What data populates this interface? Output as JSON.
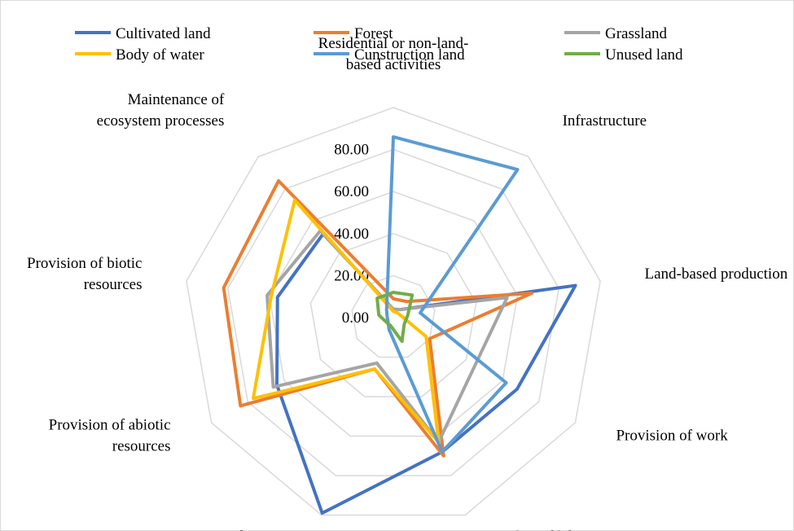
{
  "chart_data": {
    "type": "radar",
    "title": "",
    "axes": [
      "Residential or non-land-based activities",
      "Infrastructure",
      "Land-based production",
      "Provision of work",
      "Quality of life",
      "Food security",
      "Provision of abiotic resources",
      "Provision of biotic resources",
      "Maintenance of ecosystem processes"
    ],
    "axis_label_lines": [
      [
        "Residential or non-land-",
        "based activities"
      ],
      [
        "Infrastructure"
      ],
      [
        "Land-based production"
      ],
      [
        "Provision of work"
      ],
      [
        "Quality of life"
      ],
      [
        "Food security"
      ],
      [
        "Provision of abiotic",
        "resources"
      ],
      [
        "Provision of biotic",
        "resources"
      ],
      [
        "Maintenance of",
        "ecosystem processes"
      ]
    ],
    "rlim": [
      0,
      100
    ],
    "ticks": [
      "0.00",
      "20.00",
      "40.00",
      "60.00",
      "80.00"
    ],
    "tick_values": [
      0,
      20,
      40,
      60,
      80
    ],
    "grid": true,
    "legend_position": "top",
    "series": [
      {
        "name": "Cultivated land",
        "color": "#4472c4",
        "values": [
          4,
          5,
          88,
          68,
          68,
          99,
          64,
          56,
          52
        ]
      },
      {
        "name": "Forest",
        "color": "#ed7d31",
        "values": [
          9,
          10,
          67,
          20,
          70,
          26,
          84,
          82,
          85
        ]
      },
      {
        "name": "Grassland",
        "color": "#a5a5a5",
        "values": [
          4,
          5,
          55,
          45,
          63,
          23,
          66,
          61,
          54
        ]
      },
      {
        "name": "Body of water",
        "color": "#ffc000",
        "values": [
          3,
          3,
          4,
          18,
          63,
          26,
          77,
          59,
          73
        ]
      },
      {
        "name": "Cunstruction land",
        "color": "#5b9bd5",
        "values": [
          86,
          92,
          13,
          62,
          68,
          6,
          3,
          3,
          5
        ]
      },
      {
        "name": "Unused land",
        "color": "#70ad47",
        "values": [
          12,
          14,
          7,
          6,
          12,
          4,
          4,
          7,
          12
        ]
      }
    ]
  }
}
